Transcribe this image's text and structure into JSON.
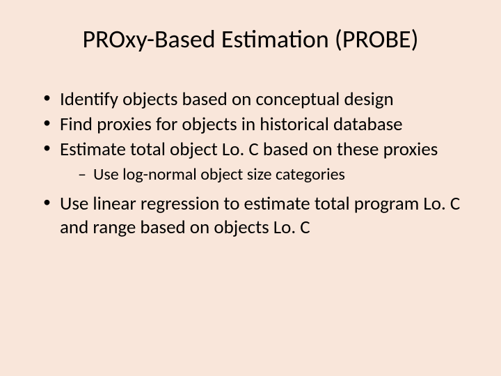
{
  "slide": {
    "background_color": "#f9e6da",
    "text_color": "#000000",
    "font_family": "Calibri",
    "title": {
      "text": "PROxy-Based Estimation (PROBE)",
      "fontsize": 36,
      "align": "center"
    },
    "bullets": [
      {
        "text": "Identify objects based on conceptual design",
        "level": 1,
        "fontsize": 27
      },
      {
        "text": "Find proxies for objects in historical database",
        "level": 1,
        "fontsize": 27
      },
      {
        "text": "Estimate total object Lo. C based on these proxies",
        "level": 1,
        "fontsize": 27
      },
      {
        "text": "Use log-normal object size categories",
        "level": 2,
        "fontsize": 24
      },
      {
        "text": "Use linear regression to estimate total program Lo. C and range based on objects Lo. C",
        "level": 1,
        "fontsize": 27
      }
    ],
    "bullet_markers": {
      "level1": "•",
      "level2": "–"
    }
  }
}
